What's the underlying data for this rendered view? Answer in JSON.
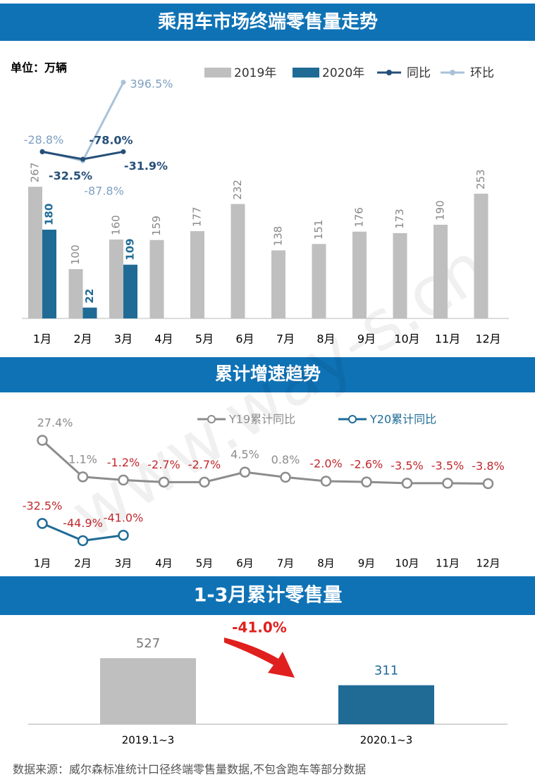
{
  "chart_data": [
    {
      "type": "bar",
      "title": "乘用车市场终端零售量走势",
      "unit": "单位：万辆",
      "categories": [
        "1月",
        "2月",
        "3月",
        "4月",
        "5月",
        "6月",
        "7月",
        "8月",
        "9月",
        "10月",
        "11月",
        "12月"
      ],
      "series": [
        {
          "name": "2019年",
          "type": "bar",
          "color": "#bfbfbf",
          "values": [
            267,
            100,
            160,
            159,
            177,
            232,
            138,
            151,
            176,
            173,
            190,
            253
          ]
        },
        {
          "name": "2020年",
          "type": "bar",
          "color": "#1f6b96",
          "values": [
            180,
            22,
            109,
            null,
            null,
            null,
            null,
            null,
            null,
            null,
            null,
            null
          ]
        },
        {
          "name": "环比",
          "type": "line",
          "color": "#a9c2d8",
          "values": [
            -28.8,
            -87.8,
            396.5,
            null,
            null,
            null,
            null,
            null,
            null,
            null,
            null,
            null
          ],
          "value_labels": [
            "-28.8%",
            "-87.8%",
            "396.5%",
            null,
            null,
            null,
            null,
            null,
            null,
            null,
            null,
            null
          ]
        },
        {
          "name": "同比",
          "type": "line",
          "color": "#264f78",
          "values": [
            -32.5,
            -78.0,
            -31.9,
            null,
            null,
            null,
            null,
            null,
            null,
            null,
            null,
            null
          ],
          "value_labels": [
            "-32.5%",
            "-78.0%",
            "-31.9%",
            null,
            null,
            null,
            null,
            null,
            null,
            null,
            null,
            null
          ]
        }
      ]
    },
    {
      "type": "line",
      "title": "累计增速趋势",
      "categories": [
        "1月",
        "2月",
        "3月",
        "4月",
        "5月",
        "6月",
        "7月",
        "8月",
        "9月",
        "10月",
        "11月",
        "12月"
      ],
      "series": [
        {
          "name": "Y19累计同比",
          "color": "#8c8c8c",
          "values": [
            27.4,
            1.1,
            -1.2,
            -2.7,
            -2.7,
            4.5,
            0.8,
            -2.0,
            -2.6,
            -3.5,
            -3.5,
            -3.8
          ],
          "value_labels": [
            "27.4%",
            "1.1%",
            "-1.2%",
            "-2.7%",
            "-2.7%",
            "4.5%",
            "0.8%",
            "-2.0%",
            "-2.6%",
            "-3.5%",
            "-3.5%",
            "-3.8%"
          ]
        },
        {
          "name": "Y20累计同比",
          "color": "#1f6b96",
          "values": [
            -32.5,
            -44.9,
            -41.0,
            null,
            null,
            null,
            null,
            null,
            null,
            null,
            null,
            null
          ],
          "value_labels": [
            "-32.5%",
            "-44.9%",
            "-41.0%",
            null,
            null,
            null,
            null,
            null,
            null,
            null,
            null,
            null
          ]
        }
      ]
    },
    {
      "type": "bar",
      "title": "1-3月累计零售量",
      "categories": [
        "2019.1~3",
        "2020.1~3"
      ],
      "values": [
        527,
        311
      ],
      "colors": [
        "#bfbfbf",
        "#1f6b96"
      ],
      "annotation": "-41.0%"
    }
  ],
  "source": "数据来源：威尔森标准统计口径终端零售量数据,不包含跑车等部分数据",
  "watermark": "www.way-s.cn"
}
